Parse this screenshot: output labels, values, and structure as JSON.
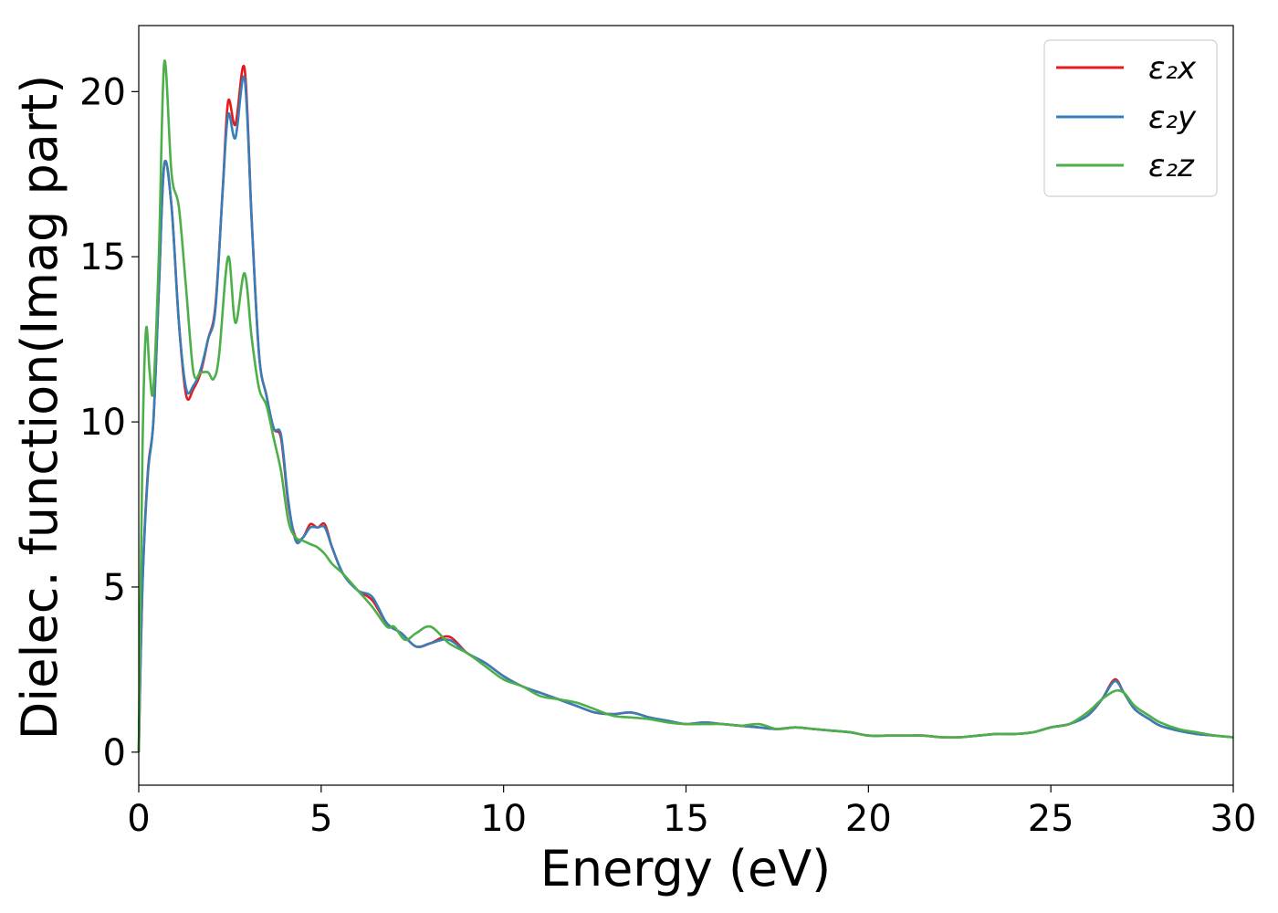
{
  "chart_data": {
    "type": "line",
    "xlabel": "Energy (eV)",
    "ylabel": "Dielec. function(Imag part)",
    "xlim": [
      0,
      30
    ],
    "ylim": [
      -1,
      22
    ],
    "x_ticks": [
      0,
      5,
      10,
      15,
      20,
      25,
      30
    ],
    "y_ticks": [
      0,
      5,
      10,
      15,
      20
    ],
    "x_tick_labels": [
      "0",
      "5",
      "10",
      "15",
      "20",
      "25",
      "30"
    ],
    "y_tick_labels": [
      "0",
      "5",
      "10",
      "15",
      "20"
    ],
    "grid": false,
    "legend_position": "top-right",
    "series": [
      {
        "name": "ε₂x",
        "color": "#e41a1c",
        "x": [
          0,
          0.1,
          0.25,
          0.4,
          0.55,
          0.7,
          0.9,
          1.1,
          1.3,
          1.5,
          1.7,
          1.9,
          2.1,
          2.3,
          2.45,
          2.65,
          2.9,
          3.1,
          3.3,
          3.5,
          3.7,
          3.9,
          4.1,
          4.3,
          4.5,
          4.7,
          4.9,
          5.1,
          5.3,
          5.6,
          6.0,
          6.4,
          6.8,
          7.2,
          7.6,
          8.0,
          8.5,
          9.0,
          9.5,
          10.0,
          10.5,
          11.0,
          11.5,
          12.0,
          12.5,
          13.0,
          13.5,
          14.0,
          14.5,
          15.0,
          15.5,
          16.0,
          16.5,
          17.0,
          17.5,
          18.0,
          18.5,
          19.0,
          19.5,
          20.0,
          20.5,
          21.0,
          21.5,
          22.0,
          22.5,
          23.0,
          23.5,
          24.0,
          24.5,
          25.0,
          25.5,
          26.0,
          26.4,
          26.75,
          27.0,
          27.3,
          27.7,
          28.0,
          28.5,
          29.0,
          29.5,
          30.0
        ],
        "y": [
          0,
          5,
          8.5,
          10,
          14,
          17.8,
          16.5,
          13,
          10.8,
          11.0,
          11.5,
          12.5,
          13.5,
          17,
          19.7,
          19.0,
          20.7,
          16,
          12,
          10.8,
          9.8,
          9.5,
          7.5,
          6.5,
          6.5,
          6.9,
          6.8,
          6.9,
          6.2,
          5.4,
          4.9,
          4.6,
          3.9,
          3.6,
          3.2,
          3.3,
          3.5,
          3.0,
          2.7,
          2.3,
          2.0,
          1.8,
          1.6,
          1.4,
          1.2,
          1.15,
          1.2,
          1.05,
          0.95,
          0.85,
          0.9,
          0.85,
          0.8,
          0.75,
          0.7,
          0.75,
          0.7,
          0.65,
          0.6,
          0.5,
          0.5,
          0.5,
          0.5,
          0.45,
          0.45,
          0.5,
          0.55,
          0.55,
          0.6,
          0.75,
          0.85,
          1.1,
          1.6,
          2.2,
          1.8,
          1.3,
          1.0,
          0.8,
          0.65,
          0.55,
          0.5,
          0.45
        ]
      },
      {
        "name": "ε₂y",
        "color": "#377eb8",
        "x": [
          0,
          0.1,
          0.25,
          0.4,
          0.55,
          0.7,
          0.9,
          1.1,
          1.3,
          1.5,
          1.7,
          1.9,
          2.1,
          2.3,
          2.45,
          2.65,
          2.9,
          3.1,
          3.3,
          3.5,
          3.7,
          3.9,
          4.1,
          4.3,
          4.5,
          4.7,
          4.9,
          5.1,
          5.3,
          5.6,
          6.0,
          6.4,
          6.8,
          7.2,
          7.6,
          8.0,
          8.5,
          9.0,
          9.5,
          10.0,
          10.5,
          11.0,
          11.5,
          12.0,
          12.5,
          13.0,
          13.5,
          14.0,
          14.5,
          15.0,
          15.5,
          16.0,
          16.5,
          17.0,
          17.5,
          18.0,
          18.5,
          19.0,
          19.5,
          20.0,
          20.5,
          21.0,
          21.5,
          22.0,
          22.5,
          23.0,
          23.5,
          24.0,
          24.5,
          25.0,
          25.5,
          26.0,
          26.4,
          26.75,
          27.0,
          27.3,
          27.7,
          28.0,
          28.5,
          29.0,
          29.5,
          30.0
        ],
        "y": [
          0,
          5,
          8.4,
          10,
          14,
          17.8,
          16.5,
          13,
          11.0,
          11.1,
          11.6,
          12.5,
          13.4,
          17,
          19.3,
          18.6,
          20.4,
          16,
          12,
          10.8,
          9.8,
          9.6,
          7.6,
          6.4,
          6.5,
          6.8,
          6.8,
          6.8,
          6.2,
          5.4,
          4.9,
          4.7,
          3.9,
          3.6,
          3.2,
          3.3,
          3.4,
          3.0,
          2.7,
          2.3,
          2.0,
          1.8,
          1.6,
          1.4,
          1.2,
          1.15,
          1.2,
          1.05,
          0.95,
          0.85,
          0.9,
          0.85,
          0.8,
          0.75,
          0.7,
          0.75,
          0.7,
          0.65,
          0.6,
          0.5,
          0.5,
          0.5,
          0.5,
          0.45,
          0.45,
          0.5,
          0.55,
          0.55,
          0.6,
          0.75,
          0.85,
          1.1,
          1.6,
          2.15,
          1.8,
          1.3,
          1.0,
          0.8,
          0.65,
          0.55,
          0.5,
          0.45
        ]
      },
      {
        "name": "ε₂z",
        "color": "#4daf4a",
        "x": [
          0,
          0.1,
          0.2,
          0.3,
          0.4,
          0.55,
          0.7,
          0.9,
          1.1,
          1.3,
          1.5,
          1.7,
          1.9,
          2.05,
          2.2,
          2.45,
          2.65,
          2.9,
          3.1,
          3.3,
          3.5,
          3.7,
          3.9,
          4.1,
          4.3,
          4.5,
          4.7,
          4.9,
          5.1,
          5.3,
          5.6,
          6.0,
          6.4,
          6.8,
          7.0,
          7.3,
          7.6,
          8.0,
          8.5,
          9.0,
          9.5,
          10.0,
          10.5,
          11.0,
          11.5,
          12.0,
          12.5,
          13.0,
          13.5,
          14.0,
          14.5,
          15.0,
          15.5,
          16.0,
          16.5,
          17.0,
          17.5,
          18.0,
          18.5,
          19.0,
          19.5,
          20.0,
          20.5,
          21.0,
          21.5,
          22.0,
          22.5,
          23.0,
          23.5,
          24.0,
          24.5,
          25.0,
          25.5,
          26.0,
          26.4,
          26.75,
          27.0,
          27.3,
          27.7,
          28.0,
          28.5,
          29.0,
          29.5,
          30.0
        ],
        "y": [
          0,
          9,
          12.8,
          11.5,
          11.0,
          15,
          20.9,
          17.5,
          16.5,
          14,
          11.5,
          11.5,
          11.5,
          11.3,
          12,
          15.0,
          13.0,
          14.5,
          12.5,
          11,
          10.5,
          9.5,
          8.5,
          7.0,
          6.5,
          6.4,
          6.3,
          6.2,
          6.0,
          5.7,
          5.4,
          4.9,
          4.4,
          3.8,
          3.8,
          3.4,
          3.6,
          3.8,
          3.3,
          3.0,
          2.6,
          2.2,
          2.0,
          1.7,
          1.6,
          1.5,
          1.3,
          1.1,
          1.05,
          1.0,
          0.9,
          0.85,
          0.85,
          0.85,
          0.8,
          0.85,
          0.7,
          0.75,
          0.7,
          0.65,
          0.6,
          0.5,
          0.5,
          0.5,
          0.5,
          0.45,
          0.45,
          0.5,
          0.55,
          0.55,
          0.6,
          0.75,
          0.85,
          1.2,
          1.6,
          1.85,
          1.8,
          1.4,
          1.1,
          0.9,
          0.7,
          0.6,
          0.5,
          0.45
        ]
      }
    ]
  }
}
